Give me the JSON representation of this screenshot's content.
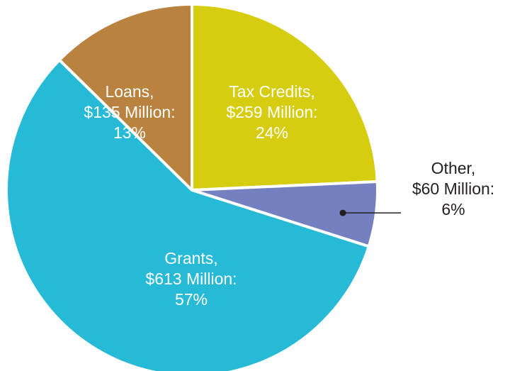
{
  "chart_data": {
    "type": "pie",
    "title": "",
    "slices": [
      {
        "category": "Tax Credits",
        "amount": "$259 Million",
        "value": 259,
        "percent": 24,
        "color": "#d6cd10",
        "label_lines": [
          "Tax Credits,",
          "$259 Million:",
          "24%"
        ],
        "label_color": "#ffffff"
      },
      {
        "category": "Other",
        "amount": "$60 Million",
        "value": 60,
        "percent": 6,
        "color": "#7480bf",
        "label_lines": [
          "Other,",
          "$60 Million:",
          "6%"
        ],
        "label_color": "#231f20",
        "label_external": true
      },
      {
        "category": "Grants",
        "amount": "$613 Million",
        "value": 613,
        "percent": 57,
        "color": "#27bad6",
        "label_lines": [
          "Grants,",
          "$613 Million:",
          "57%"
        ],
        "label_color": "#ffffff"
      },
      {
        "category": "Loans",
        "amount": "$135 Million",
        "value": 135,
        "percent": 13,
        "color": "#b9823e",
        "label_lines": [
          "Loans,",
          "$135 Million:",
          "13%"
        ],
        "label_color": "#ffffff"
      }
    ],
    "legend": "none"
  }
}
